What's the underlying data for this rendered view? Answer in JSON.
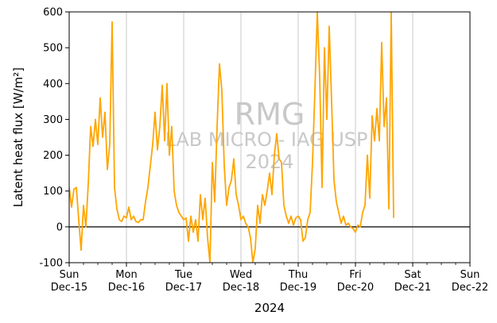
{
  "chart_data": {
    "type": "line",
    "xlabel": "2024",
    "ylabel": "Latent heat flux [W/m²]",
    "ylim": [
      -100,
      600
    ],
    "xlim": [
      "2024-12-15T00:00",
      "2024-12-22T00:00"
    ],
    "yticks": [
      -100,
      0,
      100,
      200,
      300,
      400,
      500,
      600
    ],
    "xticks": [
      {
        "day": "Sun",
        "date": "Dec-15"
      },
      {
        "day": "Mon",
        "date": "Dec-16"
      },
      {
        "day": "Tue",
        "date": "Dec-17"
      },
      {
        "day": "Wed",
        "date": "Dec-18"
      },
      {
        "day": "Thu",
        "date": "Dec-19"
      },
      {
        "day": "Fri",
        "date": "Dec-20"
      },
      {
        "day": "Sat",
        "date": "Dec-21"
      },
      {
        "day": "Sun",
        "date": "Dec-22"
      }
    ],
    "vertical_grid": true,
    "zero_line": true,
    "series": [
      {
        "color": "#FFA500",
        "points": [
          [
            "2024-12-15T00:00",
            110
          ],
          [
            "2024-12-15T01:00",
            55
          ],
          [
            "2024-12-15T02:00",
            105
          ],
          [
            "2024-12-15T03:00",
            110
          ],
          [
            "2024-12-15T04:00",
            20
          ],
          [
            "2024-12-15T05:00",
            -65
          ],
          [
            "2024-12-15T06:00",
            60
          ],
          [
            "2024-12-15T07:00",
            0
          ],
          [
            "2024-12-15T08:00",
            120
          ],
          [
            "2024-12-15T09:00",
            280
          ],
          [
            "2024-12-15T10:00",
            225
          ],
          [
            "2024-12-15T11:00",
            300
          ],
          [
            "2024-12-15T12:00",
            230
          ],
          [
            "2024-12-15T13:00",
            360
          ],
          [
            "2024-12-15T14:00",
            250
          ],
          [
            "2024-12-15T15:00",
            320
          ],
          [
            "2024-12-15T16:00",
            160
          ],
          [
            "2024-12-15T17:00",
            230
          ],
          [
            "2024-12-15T18:00",
            572
          ],
          [
            "2024-12-15T19:00",
            110
          ],
          [
            "2024-12-15T20:00",
            50
          ],
          [
            "2024-12-15T21:00",
            20
          ],
          [
            "2024-12-15T22:00",
            15
          ],
          [
            "2024-12-15T23:00",
            30
          ],
          [
            "2024-12-16T00:00",
            25
          ],
          [
            "2024-12-16T01:00",
            55
          ],
          [
            "2024-12-16T02:00",
            20
          ],
          [
            "2024-12-16T03:00",
            30
          ],
          [
            "2024-12-16T04:00",
            15
          ],
          [
            "2024-12-16T05:00",
            12
          ],
          [
            "2024-12-16T06:00",
            20
          ],
          [
            "2024-12-16T07:00",
            20
          ],
          [
            "2024-12-16T08:00",
            70
          ],
          [
            "2024-12-16T09:00",
            110
          ],
          [
            "2024-12-16T10:00",
            170
          ],
          [
            "2024-12-16T11:00",
            230
          ],
          [
            "2024-12-16T12:00",
            320
          ],
          [
            "2024-12-16T13:00",
            215
          ],
          [
            "2024-12-16T14:00",
            280
          ],
          [
            "2024-12-16T15:00",
            395
          ],
          [
            "2024-12-16T16:00",
            240
          ],
          [
            "2024-12-16T17:00",
            400
          ],
          [
            "2024-12-16T18:00",
            200
          ],
          [
            "2024-12-16T19:00",
            280
          ],
          [
            "2024-12-16T20:00",
            100
          ],
          [
            "2024-12-16T21:00",
            60
          ],
          [
            "2024-12-16T22:00",
            40
          ],
          [
            "2024-12-16T23:00",
            30
          ],
          [
            "2024-12-17T00:00",
            20
          ],
          [
            "2024-12-17T01:00",
            25
          ],
          [
            "2024-12-17T02:00",
            -40
          ],
          [
            "2024-12-17T03:00",
            30
          ],
          [
            "2024-12-17T04:00",
            -15
          ],
          [
            "2024-12-17T05:00",
            20
          ],
          [
            "2024-12-17T06:00",
            -40
          ],
          [
            "2024-12-17T07:00",
            90
          ],
          [
            "2024-12-17T08:00",
            20
          ],
          [
            "2024-12-17T09:00",
            80
          ],
          [
            "2024-12-17T10:00",
            -30
          ],
          [
            "2024-12-17T11:00",
            -100
          ],
          [
            "2024-12-17T12:00",
            180
          ],
          [
            "2024-12-17T13:00",
            70
          ],
          [
            "2024-12-17T14:00",
            280
          ],
          [
            "2024-12-17T15:00",
            455
          ],
          [
            "2024-12-17T16:00",
            380
          ],
          [
            "2024-12-17T17:00",
            170
          ],
          [
            "2024-12-17T18:00",
            60
          ],
          [
            "2024-12-17T19:00",
            110
          ],
          [
            "2024-12-17T20:00",
            130
          ],
          [
            "2024-12-17T21:00",
            190
          ],
          [
            "2024-12-17T22:00",
            90
          ],
          [
            "2024-12-17T23:00",
            60
          ],
          [
            "2024-12-18T00:00",
            20
          ],
          [
            "2024-12-18T01:00",
            30
          ],
          [
            "2024-12-18T02:00",
            10
          ],
          [
            "2024-12-18T03:00",
            0
          ],
          [
            "2024-12-18T04:00",
            -30
          ],
          [
            "2024-12-18T05:00",
            -100
          ],
          [
            "2024-12-18T06:00",
            -60
          ],
          [
            "2024-12-18T07:00",
            60
          ],
          [
            "2024-12-18T08:00",
            10
          ],
          [
            "2024-12-18T09:00",
            90
          ],
          [
            "2024-12-18T10:00",
            60
          ],
          [
            "2024-12-18T11:00",
            100
          ],
          [
            "2024-12-18T12:00",
            150
          ],
          [
            "2024-12-18T13:00",
            90
          ],
          [
            "2024-12-18T14:00",
            200
          ],
          [
            "2024-12-18T15:00",
            260
          ],
          [
            "2024-12-18T16:00",
            190
          ],
          [
            "2024-12-18T17:00",
            180
          ],
          [
            "2024-12-18T18:00",
            60
          ],
          [
            "2024-12-18T19:00",
            30
          ],
          [
            "2024-12-18T20:00",
            10
          ],
          [
            "2024-12-18T21:00",
            30
          ],
          [
            "2024-12-18T22:00",
            5
          ],
          [
            "2024-12-18T23:00",
            25
          ],
          [
            "2024-12-19T00:00",
            30
          ],
          [
            "2024-12-19T01:00",
            20
          ],
          [
            "2024-12-19T02:00",
            -40
          ],
          [
            "2024-12-19T03:00",
            -30
          ],
          [
            "2024-12-19T04:00",
            20
          ],
          [
            "2024-12-19T05:00",
            40
          ],
          [
            "2024-12-19T06:00",
            180
          ],
          [
            "2024-12-19T07:00",
            380
          ],
          [
            "2024-12-19T08:00",
            600
          ],
          [
            "2024-12-19T09:00",
            420
          ],
          [
            "2024-12-19T10:00",
            110
          ],
          [
            "2024-12-19T11:00",
            500
          ],
          [
            "2024-12-19T12:00",
            300
          ],
          [
            "2024-12-19T13:00",
            560
          ],
          [
            "2024-12-19T14:00",
            350
          ],
          [
            "2024-12-19T15:00",
            130
          ],
          [
            "2024-12-19T16:00",
            70
          ],
          [
            "2024-12-19T17:00",
            40
          ],
          [
            "2024-12-19T18:00",
            10
          ],
          [
            "2024-12-19T19:00",
            30
          ],
          [
            "2024-12-19T20:00",
            5
          ],
          [
            "2024-12-19T21:00",
            10
          ],
          [
            "2024-12-19T22:00",
            0
          ],
          [
            "2024-12-19T23:00",
            -5
          ],
          [
            "2024-12-20T00:00",
            -15
          ],
          [
            "2024-12-20T01:00",
            5
          ],
          [
            "2024-12-20T02:00",
            0
          ],
          [
            "2024-12-20T03:00",
            40
          ],
          [
            "2024-12-20T04:00",
            60
          ],
          [
            "2024-12-20T05:00",
            200
          ],
          [
            "2024-12-20T06:00",
            80
          ],
          [
            "2024-12-20T07:00",
            310
          ],
          [
            "2024-12-20T08:00",
            240
          ],
          [
            "2024-12-20T09:00",
            330
          ],
          [
            "2024-12-20T10:00",
            240
          ],
          [
            "2024-12-20T11:00",
            515
          ],
          [
            "2024-12-20T12:00",
            280
          ],
          [
            "2024-12-20T13:00",
            360
          ],
          [
            "2024-12-20T14:00",
            50
          ],
          [
            "2024-12-20T15:00",
            600
          ],
          [
            "2024-12-20T16:00",
            25
          ]
        ]
      }
    ]
  },
  "watermark": {
    "line1": "RMG",
    "line2": "LAB MICRO - IAG USP",
    "line3": "2024"
  }
}
